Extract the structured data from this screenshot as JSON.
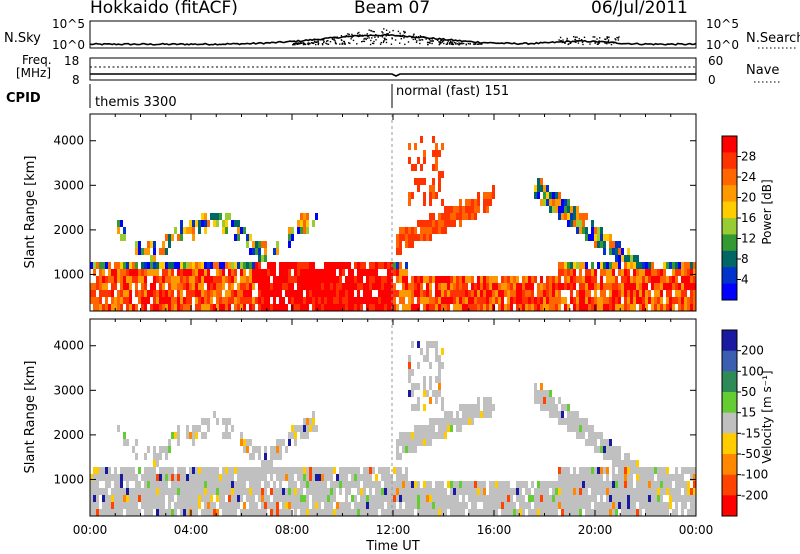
{
  "header": {
    "station": "Hokkaido (fitACF)",
    "beam": "Beam 07",
    "date": "06/Jul/2011"
  },
  "top_panels": {
    "nsky_label": "N.Sky",
    "nsky_ticks": [
      "10^5",
      "10^0"
    ],
    "nsearch_label": "N.Search",
    "freq_label_1": "Freq.",
    "freq_label_2": "[MHz]",
    "freq_ticks": [
      "18",
      "8"
    ],
    "nave_label": "Nave",
    "nave_ticks": [
      "60",
      "0"
    ],
    "cpid_label": "CPID",
    "cpid_segments": [
      "themis 3300",
      "normal (fast) 151"
    ]
  },
  "power_colorbar": {
    "title": "Power [dB]",
    "ticks": [
      "28",
      "24",
      "20",
      "16",
      "12",
      "8",
      "4"
    ],
    "colors": [
      "#ff0000",
      "#ff3300",
      "#ff6600",
      "#ff9900",
      "#ffcc00",
      "#99cc33",
      "#339933",
      "#006666",
      "#0033cc",
      "#0000ff"
    ]
  },
  "velocity_colorbar": {
    "title": "Velocity [m s⁻¹]",
    "ticks": [
      "200",
      "100",
      "50",
      "15",
      "-15",
      "-50",
      "-100",
      "-200"
    ],
    "colors": [
      "#1a1aa0",
      "#3a5fb0",
      "#2e8b57",
      "#66cc33",
      "#c0c0c0",
      "#ffcc00",
      "#ff8800",
      "#ff4400",
      "#ff0000"
    ]
  },
  "chart_data": [
    {
      "type": "heatmap",
      "name": "power",
      "xlabel": "",
      "ylabel": "Slant Range [km]",
      "x_ticks": [
        "00:00",
        "04:00",
        "08:00",
        "12:00",
        "16:00",
        "20:00",
        "00:00"
      ],
      "y_ticks": [
        "1000",
        "2000",
        "3000",
        "4000"
      ],
      "xlim_hours": [
        0,
        24
      ],
      "ylim_km": [
        180,
        4600
      ],
      "grid": false
    },
    {
      "type": "heatmap",
      "name": "velocity",
      "xlabel": "Time UT",
      "ylabel": "Slant Range [km]",
      "x_ticks": [
        "00:00",
        "04:00",
        "08:00",
        "12:00",
        "16:00",
        "20:00",
        "00:00"
      ],
      "y_ticks": [
        "1000",
        "2000",
        "3000",
        "4000"
      ],
      "xlim_hours": [
        0,
        24
      ],
      "ylim_km": [
        180,
        4600
      ],
      "grid": false
    }
  ]
}
